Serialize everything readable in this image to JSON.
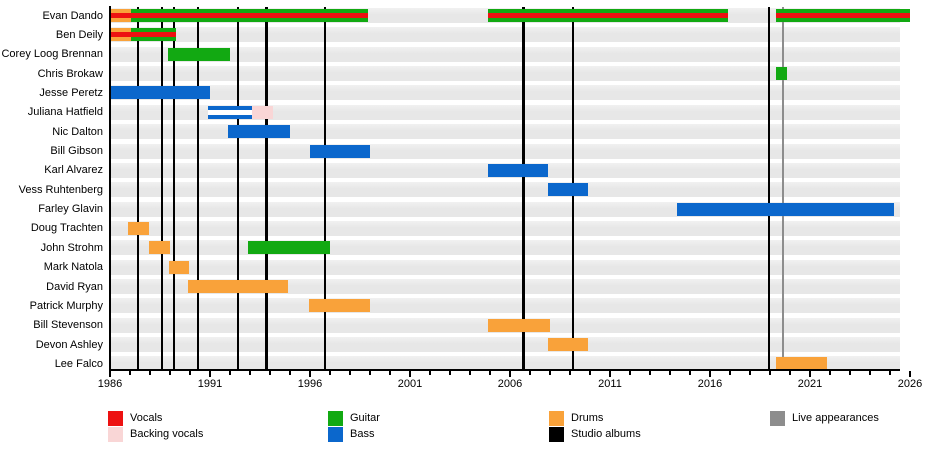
{
  "chart_data": {
    "type": "timeline",
    "description": "Band members timeline (Gantt-style) with instrument roles, studio albums and live appearances markers",
    "x_axis": {
      "start_year": 1986,
      "end_year": 2026,
      "label_interval": 5,
      "minor_tick_interval": 1,
      "tick_labels": [
        "1986",
        "1991",
        "1996",
        "2001",
        "2006",
        "2011",
        "2016",
        "2021",
        "2026"
      ]
    },
    "rows": [
      {
        "name": "Evan Dando",
        "segments": [
          {
            "start": 1986.0,
            "end": 1987.05,
            "role": "drums",
            "vocals": true
          },
          {
            "start": 1987.05,
            "end": 1998.9,
            "role": "guitar",
            "vocals": true
          },
          {
            "start": 2004.9,
            "end": 2016.9,
            "role": "guitar",
            "vocals": true
          },
          {
            "start": 2019.3,
            "end": 2026.0,
            "role": "guitar",
            "vocals": true
          }
        ]
      },
      {
        "name": "Ben Deily",
        "segments": [
          {
            "start": 1986.0,
            "end": 1987.05,
            "role": "drums",
            "vocals": true
          },
          {
            "start": 1987.05,
            "end": 1989.3,
            "role": "guitar",
            "vocals": true
          }
        ]
      },
      {
        "name": "Corey Loog Brennan",
        "segments": [
          {
            "start": 1988.9,
            "end": 1992.0,
            "role": "guitar"
          }
        ]
      },
      {
        "name": "Chris Brokaw",
        "segments": [
          {
            "start": 2019.3,
            "end": 2019.85,
            "role": "guitar"
          }
        ]
      },
      {
        "name": "Jesse Peretz",
        "segments": [
          {
            "start": 1986.0,
            "end": 1991.0,
            "role": "bass"
          }
        ]
      },
      {
        "name": "Juliana Hatfield",
        "segments": [
          {
            "start": 1990.9,
            "end": 1993.1,
            "role": "bass",
            "stripe": "white"
          },
          {
            "start": 1993.1,
            "end": 1994.15,
            "role": "backing_vocals"
          }
        ]
      },
      {
        "name": "Nic Dalton",
        "segments": [
          {
            "start": 1991.9,
            "end": 1995.0,
            "role": "bass"
          }
        ]
      },
      {
        "name": "Bill Gibson",
        "segments": [
          {
            "start": 1996.0,
            "end": 1999.0,
            "role": "bass"
          }
        ]
      },
      {
        "name": "Karl Alvarez",
        "segments": [
          {
            "start": 2004.9,
            "end": 2007.9,
            "role": "bass"
          }
        ]
      },
      {
        "name": "Vess Ruhtenberg",
        "segments": [
          {
            "start": 2007.9,
            "end": 2009.9,
            "role": "bass"
          }
        ]
      },
      {
        "name": "Farley Glavin",
        "segments": [
          {
            "start": 2014.35,
            "end": 2025.2,
            "role": "bass"
          }
        ]
      },
      {
        "name": "Doug Trachten",
        "segments": [
          {
            "start": 1986.9,
            "end": 1987.95,
            "role": "drums"
          }
        ]
      },
      {
        "name": "John Strohm",
        "segments": [
          {
            "start": 1987.95,
            "end": 1989.0,
            "role": "drums"
          },
          {
            "start": 1992.9,
            "end": 1997.0,
            "role": "guitar"
          }
        ]
      },
      {
        "name": "Mark Natola",
        "segments": [
          {
            "start": 1988.95,
            "end": 1989.95,
            "role": "drums"
          }
        ]
      },
      {
        "name": "David Ryan",
        "segments": [
          {
            "start": 1989.9,
            "end": 1994.9,
            "role": "drums"
          }
        ]
      },
      {
        "name": "Patrick Murphy",
        "segments": [
          {
            "start": 1995.95,
            "end": 1999.0,
            "role": "drums"
          }
        ]
      },
      {
        "name": "Bill Stevenson",
        "segments": [
          {
            "start": 2004.9,
            "end": 2008.0,
            "role": "drums"
          }
        ]
      },
      {
        "name": "Devon Ashley",
        "segments": [
          {
            "start": 2007.9,
            "end": 2009.9,
            "role": "drums"
          }
        ]
      },
      {
        "name": "Lee Falco",
        "segments": [
          {
            "start": 2019.3,
            "end": 2021.85,
            "role": "drums"
          }
        ]
      }
    ],
    "studio_albums_years": [
      1987.4,
      1988.6,
      1989.2,
      1990.4,
      1992.4,
      1993.83,
      1996.75,
      2006.68,
      2009.15,
      2018.95
    ],
    "live_appearances_years": [
      2019.65
    ],
    "legend": [
      {
        "label": "Vocals",
        "color_key": "vocals",
        "col": 0,
        "row": 0
      },
      {
        "label": "Backing vocals",
        "color_key": "backing_vocals",
        "col": 0,
        "row": 1
      },
      {
        "label": "Guitar",
        "color_key": "guitar",
        "col": 1,
        "row": 0
      },
      {
        "label": "Bass",
        "color_key": "bass",
        "col": 1,
        "row": 1
      },
      {
        "label": "Drums",
        "color_key": "drums",
        "col": 2,
        "row": 0
      },
      {
        "label": "Studio albums",
        "color_key": "studio_albums",
        "col": 2,
        "row": 1
      },
      {
        "label": "Live appearances",
        "color_key": "live_appearances",
        "col": 3,
        "row": 0
      }
    ],
    "colors": {
      "vocals": "#ed1111",
      "backing_vocals": "#f9d6d6",
      "guitar": "#12a912",
      "bass": "#0b67cc",
      "drums": "#f9a23a",
      "studio_albums": "#000000",
      "live_appearances": "#8d8d8d",
      "white_stripe": "#ffffff",
      "row_band": "#e8e8e8"
    }
  }
}
